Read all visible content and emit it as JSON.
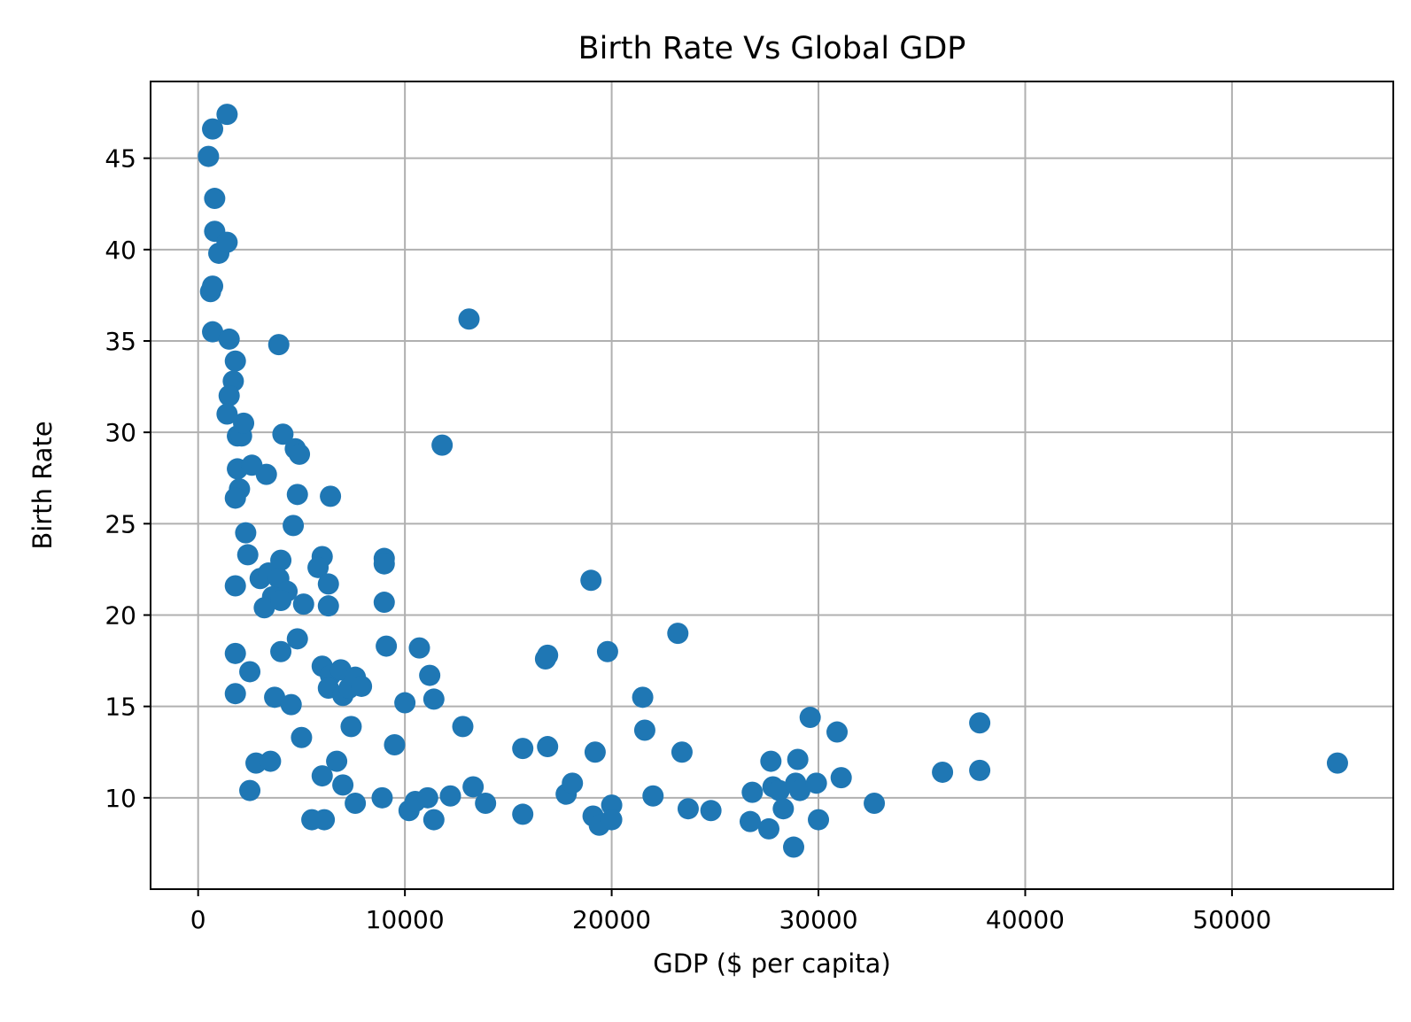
{
  "chart_data": {
    "type": "scatter",
    "title": "Birth Rate Vs Global GDP",
    "xlabel": "GDP ($ per capita)",
    "ylabel": "Birth Rate",
    "xlim": [
      -2300,
      57800
    ],
    "ylim": [
      5.0,
      49.2
    ],
    "xticks": [
      0,
      10000,
      20000,
      30000,
      40000,
      50000
    ],
    "xtick_labels": [
      "0",
      "10000",
      "20000",
      "30000",
      "40000",
      "50000"
    ],
    "yticks": [
      10,
      15,
      20,
      25,
      30,
      35,
      40,
      45
    ],
    "ytick_labels": [
      "10",
      "15",
      "20",
      "25",
      "30",
      "35",
      "40",
      "45"
    ],
    "grid": true,
    "marker_color": "#1f77b4",
    "points": [
      [
        500,
        45.1
      ],
      [
        700,
        46.6
      ],
      [
        1400,
        47.4
      ],
      [
        800,
        42.8
      ],
      [
        800,
        41.0
      ],
      [
        1000,
        39.8
      ],
      [
        1400,
        40.4
      ],
      [
        600,
        37.7
      ],
      [
        700,
        38.0
      ],
      [
        700,
        35.5
      ],
      [
        1500,
        35.1
      ],
      [
        1800,
        33.9
      ],
      [
        1700,
        32.8
      ],
      [
        1500,
        32.0
      ],
      [
        1400,
        31.0
      ],
      [
        1900,
        29.8
      ],
      [
        2100,
        29.8
      ],
      [
        2200,
        30.5
      ],
      [
        1900,
        28.0
      ],
      [
        2600,
        28.2
      ],
      [
        3300,
        27.7
      ],
      [
        2000,
        26.9
      ],
      [
        1800,
        26.4
      ],
      [
        2300,
        24.5
      ],
      [
        2400,
        23.3
      ],
      [
        1800,
        21.6
      ],
      [
        3000,
        22.0
      ],
      [
        3400,
        22.3
      ],
      [
        3900,
        34.8
      ],
      [
        4100,
        29.9
      ],
      [
        4700,
        29.1
      ],
      [
        4900,
        28.8
      ],
      [
        4800,
        26.6
      ],
      [
        6400,
        26.5
      ],
      [
        4600,
        24.9
      ],
      [
        4000,
        23.0
      ],
      [
        3900,
        22.0
      ],
      [
        4300,
        21.3
      ],
      [
        3600,
        21.0
      ],
      [
        3200,
        20.4
      ],
      [
        4000,
        20.8
      ],
      [
        5100,
        20.6
      ],
      [
        6000,
        23.2
      ],
      [
        5800,
        22.6
      ],
      [
        6300,
        21.7
      ],
      [
        6300,
        20.5
      ],
      [
        1800,
        17.9
      ],
      [
        4000,
        18.0
      ],
      [
        4800,
        18.7
      ],
      [
        1800,
        15.7
      ],
      [
        2500,
        16.9
      ],
      [
        3700,
        15.5
      ],
      [
        4500,
        15.1
      ],
      [
        5000,
        13.3
      ],
      [
        2800,
        11.9
      ],
      [
        3500,
        12.0
      ],
      [
        2500,
        10.4
      ],
      [
        5500,
        8.8
      ],
      [
        6100,
        8.8
      ],
      [
        6000,
        11.2
      ],
      [
        6700,
        12.0
      ],
      [
        7000,
        10.7
      ],
      [
        7600,
        9.7
      ],
      [
        7400,
        13.9
      ],
      [
        6000,
        17.2
      ],
      [
        6400,
        16.7
      ],
      [
        6900,
        17.0
      ],
      [
        6300,
        16.0
      ],
      [
        7000,
        15.6
      ],
      [
        7300,
        16.0
      ],
      [
        7600,
        16.6
      ],
      [
        7900,
        16.1
      ],
      [
        9000,
        23.1
      ],
      [
        9000,
        22.8
      ],
      [
        9000,
        20.7
      ],
      [
        9100,
        18.3
      ],
      [
        8900,
        10.0
      ],
      [
        9500,
        12.9
      ],
      [
        10000,
        15.2
      ],
      [
        10200,
        9.3
      ],
      [
        10500,
        9.8
      ],
      [
        10700,
        18.2
      ],
      [
        11200,
        16.7
      ],
      [
        11100,
        10.0
      ],
      [
        11400,
        15.4
      ],
      [
        11400,
        8.8
      ],
      [
        11800,
        29.3
      ],
      [
        13100,
        36.2
      ],
      [
        12200,
        10.1
      ],
      [
        12800,
        13.9
      ],
      [
        13300,
        10.6
      ],
      [
        13900,
        9.7
      ],
      [
        15700,
        9.1
      ],
      [
        15700,
        12.7
      ],
      [
        16800,
        17.6
      ],
      [
        16900,
        17.8
      ],
      [
        16900,
        12.8
      ],
      [
        17800,
        10.2
      ],
      [
        18100,
        10.8
      ],
      [
        19000,
        21.9
      ],
      [
        19100,
        9.0
      ],
      [
        19200,
        12.5
      ],
      [
        19400,
        8.5
      ],
      [
        19800,
        18.0
      ],
      [
        20000,
        9.6
      ],
      [
        20000,
        8.8
      ],
      [
        21500,
        15.5
      ],
      [
        21600,
        13.7
      ],
      [
        22000,
        10.1
      ],
      [
        23200,
        19.0
      ],
      [
        23400,
        12.5
      ],
      [
        23700,
        9.4
      ],
      [
        24800,
        9.3
      ],
      [
        26700,
        8.7
      ],
      [
        26800,
        10.3
      ],
      [
        27600,
        8.3
      ],
      [
        27700,
        12.0
      ],
      [
        27800,
        10.6
      ],
      [
        28100,
        10.4
      ],
      [
        28300,
        9.4
      ],
      [
        28800,
        7.3
      ],
      [
        28900,
        10.8
      ],
      [
        29000,
        12.1
      ],
      [
        29100,
        10.4
      ],
      [
        29600,
        14.4
      ],
      [
        29900,
        10.8
      ],
      [
        30000,
        8.8
      ],
      [
        30900,
        13.6
      ],
      [
        31100,
        11.1
      ],
      [
        32700,
        9.7
      ],
      [
        36000,
        11.4
      ],
      [
        37800,
        14.1
      ],
      [
        37800,
        11.5
      ],
      [
        55100,
        11.9
      ]
    ]
  }
}
